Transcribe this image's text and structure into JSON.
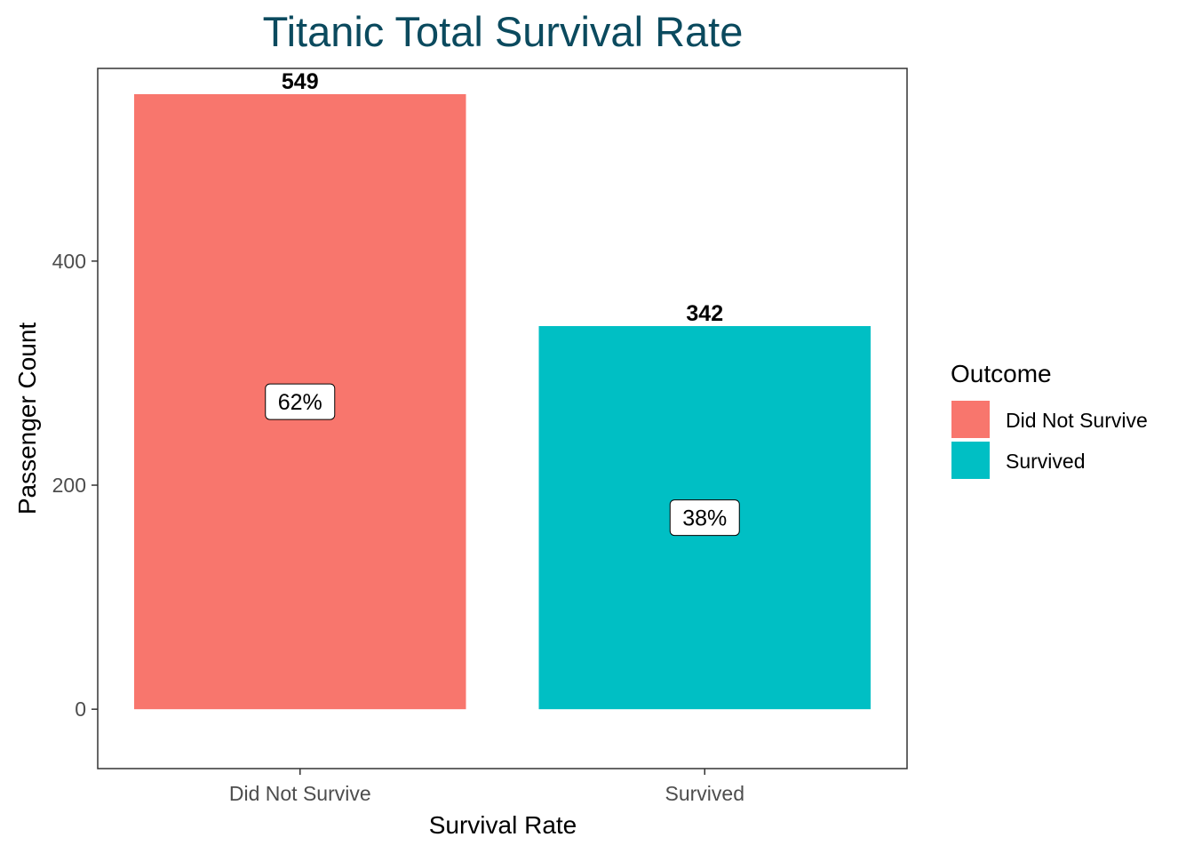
{
  "chart_data": {
    "type": "bar",
    "title": "Titanic Total Survival Rate",
    "xlabel": "Survival Rate",
    "ylabel": "Passenger Count",
    "categories": [
      "Did Not Survive",
      "Survived"
    ],
    "values": [
      549,
      342
    ],
    "value_labels": [
      "549",
      "342"
    ],
    "percent_labels": [
      "62%",
      "38%"
    ],
    "colors": [
      "#f8766d",
      "#00bfc4"
    ],
    "ylim": [
      -53,
      572
    ],
    "yticks": [
      0,
      200,
      400
    ],
    "ytick_labels": [
      "0",
      "200",
      "400"
    ],
    "grid": false,
    "legend": {
      "title": "Outcome",
      "position": "right",
      "entries": [
        "Did Not Survive",
        "Survived"
      ]
    }
  }
}
